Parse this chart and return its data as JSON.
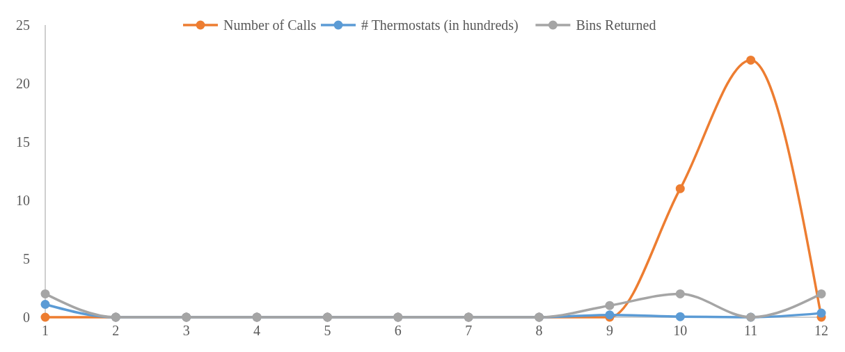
{
  "chart_data": {
    "type": "line",
    "x": [
      1,
      2,
      3,
      4,
      5,
      6,
      7,
      8,
      9,
      10,
      11,
      12
    ],
    "xlim": [
      1,
      12
    ],
    "xticks": [
      1,
      2,
      3,
      4,
      5,
      6,
      7,
      8,
      9,
      10,
      11,
      12
    ],
    "ylim": [
      0,
      25
    ],
    "yticks": [
      0,
      5,
      10,
      15,
      20,
      25
    ],
    "grid": false,
    "legend": "top",
    "marker": "circle",
    "line_style": "solid",
    "series": [
      {
        "name": "Number of Calls",
        "color": "#ed7d31",
        "values": [
          0,
          0,
          0,
          0,
          0,
          0,
          0,
          0,
          0,
          11,
          22,
          0
        ]
      },
      {
        "name": "# Thermostats (in hundreds)",
        "color": "#5b9bd5",
        "values": [
          1.1,
          0,
          0,
          0,
          0,
          0,
          0,
          0,
          0.2,
          0.05,
          0,
          0.35
        ]
      },
      {
        "name": "Bins Returned",
        "color": "#a5a5a5",
        "values": [
          2,
          0,
          0,
          0,
          0,
          0,
          0,
          0,
          1,
          2,
          0,
          2
        ]
      }
    ]
  }
}
